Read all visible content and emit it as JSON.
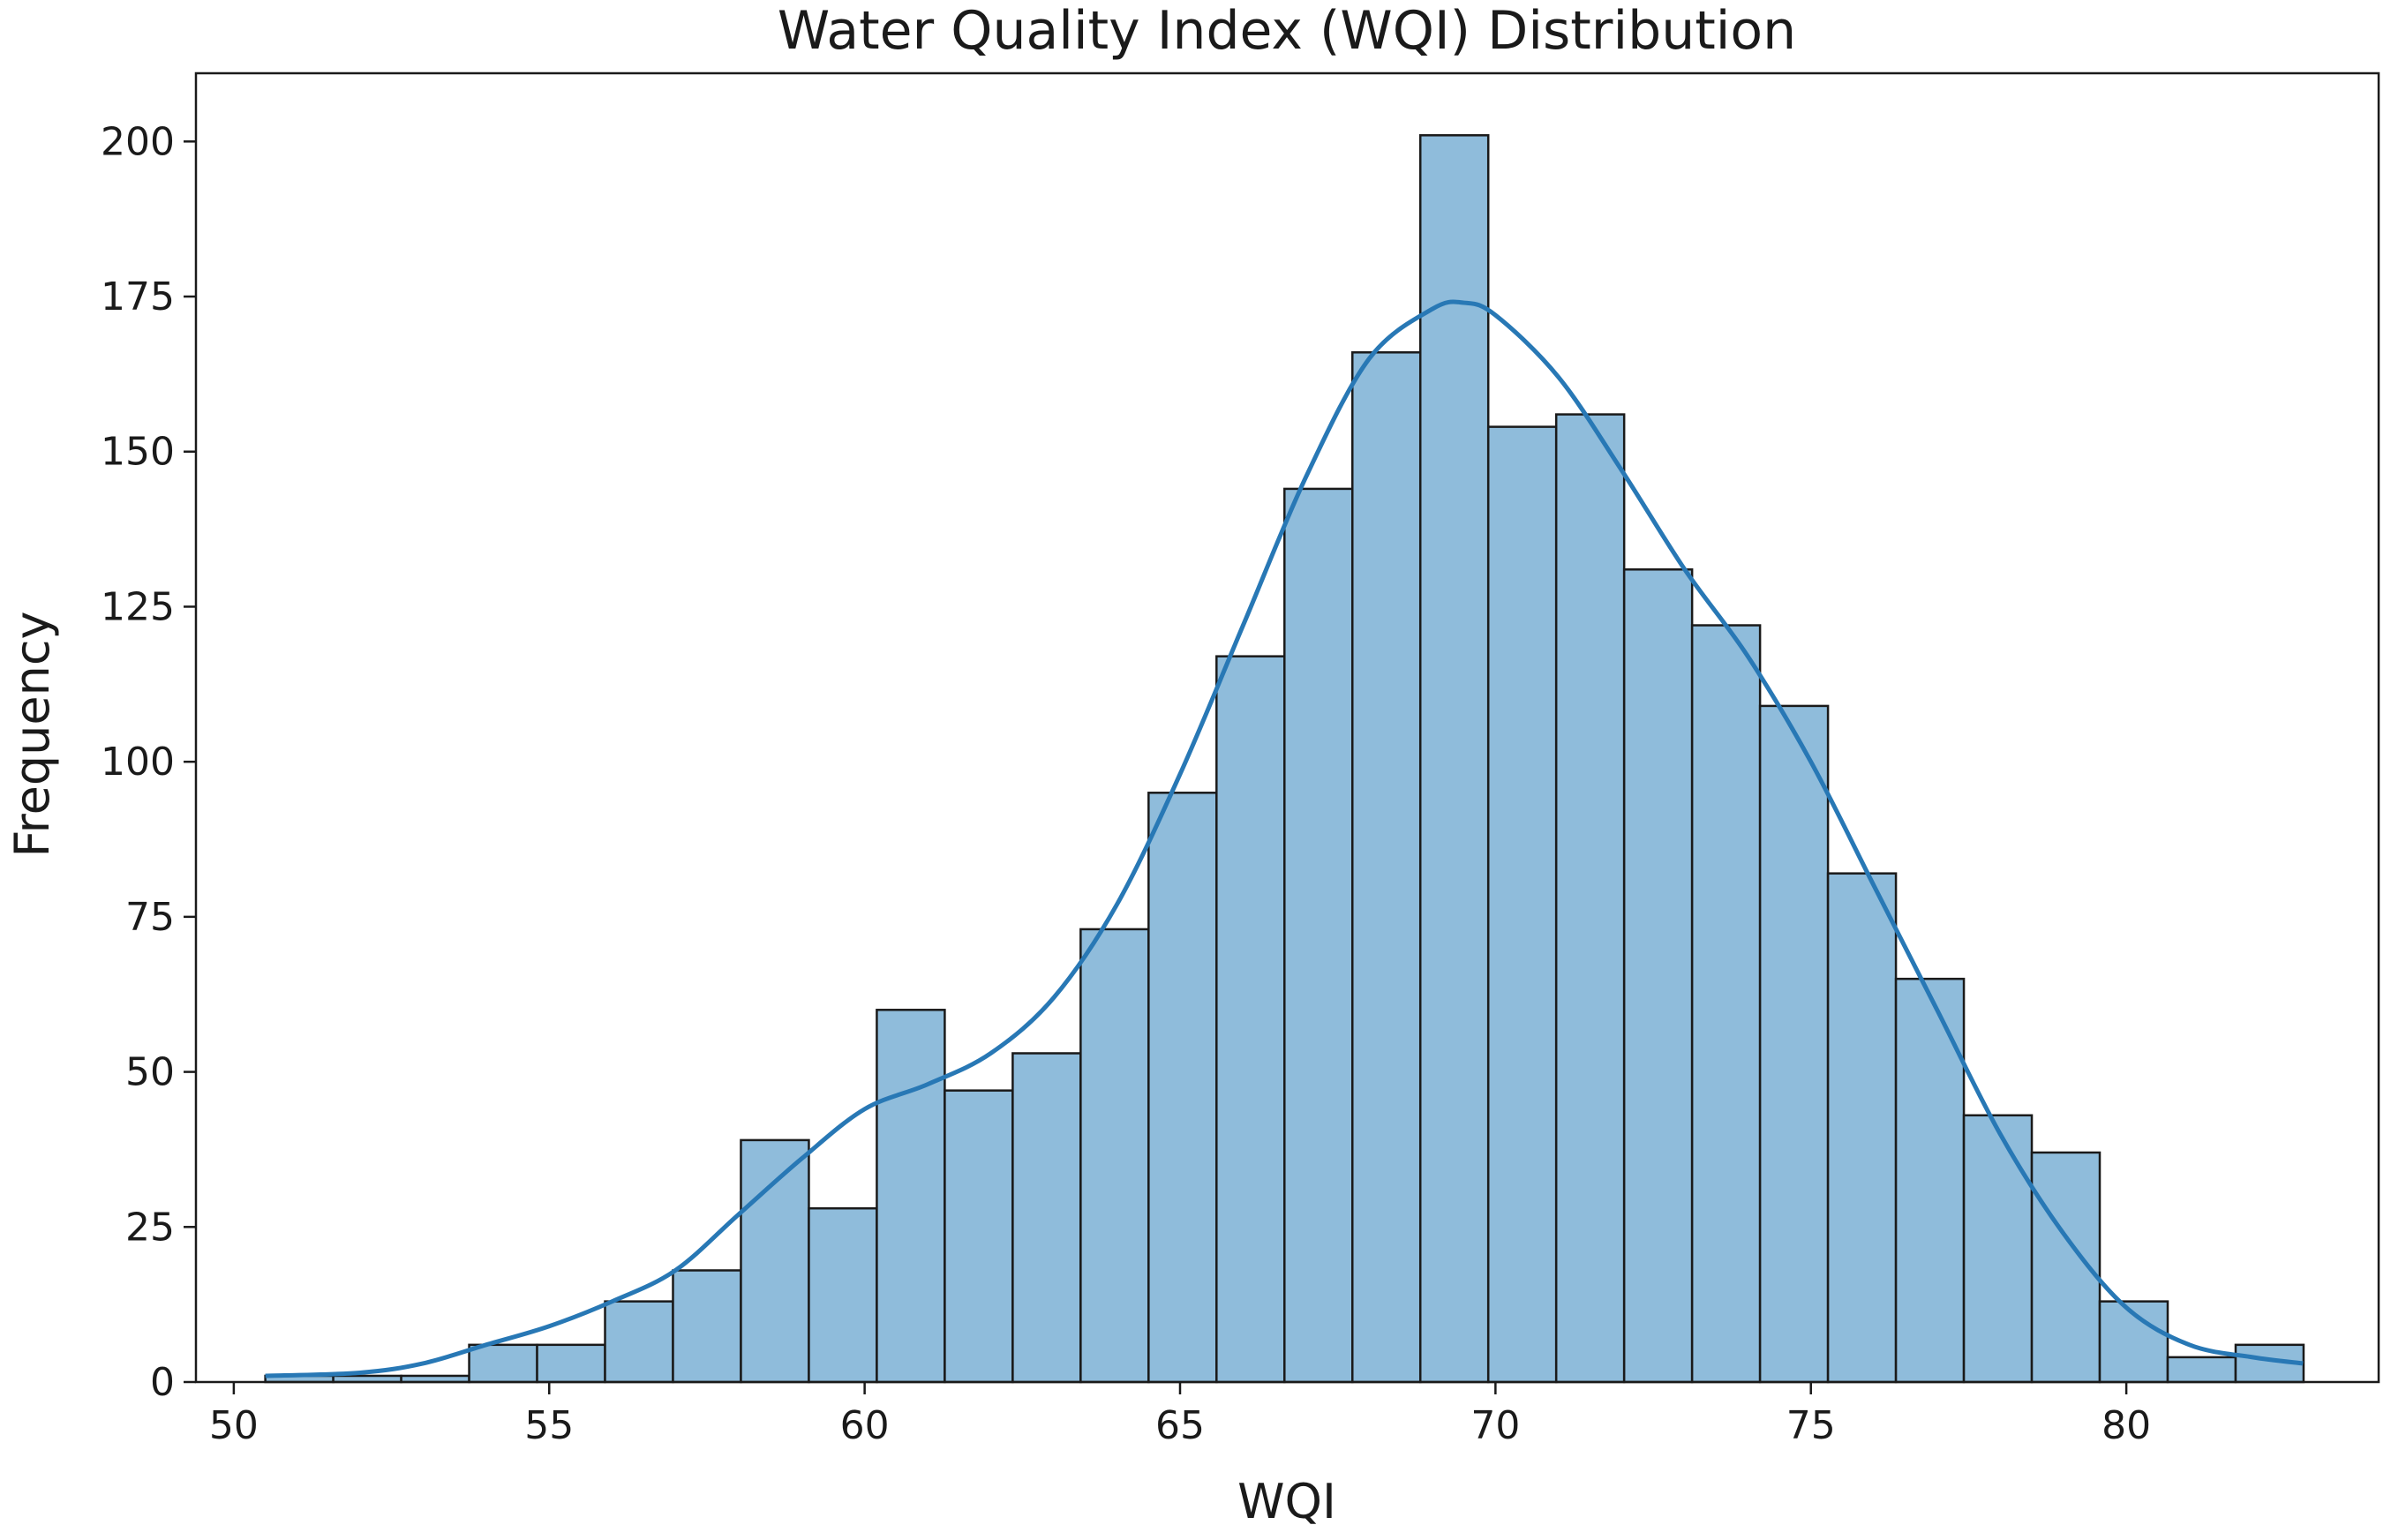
{
  "chart_data": {
    "type": "bar",
    "subtype": "histogram",
    "title": "Water Quality Index (WQI) Distribution",
    "xlabel": "WQI",
    "ylabel": "Frequency",
    "xlim": [
      49.4,
      84.0
    ],
    "ylim": [
      0,
      211
    ],
    "xticks": [
      50,
      55,
      60,
      65,
      70,
      75,
      80
    ],
    "yticks": [
      0,
      25,
      50,
      75,
      100,
      125,
      150,
      175,
      200
    ],
    "grid": false,
    "legend": "none",
    "bin_start": 50.5,
    "bin_width": 1.077,
    "counts": [
      1,
      1,
      1,
      6,
      6,
      13,
      18,
      39,
      28,
      60,
      47,
      53,
      73,
      95,
      117,
      144,
      166,
      201,
      154,
      156,
      131,
      122,
      109,
      82,
      65,
      43,
      37,
      13,
      4,
      6
    ],
    "kde": {
      "x": [
        50.5,
        52,
        53,
        54,
        55,
        56,
        57,
        58,
        59,
        60,
        61,
        62,
        63,
        64,
        65,
        66,
        67,
        68,
        69,
        69.5,
        70,
        71,
        72,
        73,
        74,
        75,
        76,
        77,
        78,
        79,
        80,
        81,
        82,
        82.8
      ],
      "y": [
        1,
        1.5,
        3,
        6,
        9,
        13,
        18,
        27,
        36,
        44,
        48,
        53,
        62,
        77,
        98,
        122,
        146,
        165,
        173,
        174,
        172,
        162,
        147,
        131,
        117,
        100,
        80,
        60,
        40,
        24,
        12,
        6,
        4,
        3
      ]
    },
    "colors": {
      "bar_fill": "#8fbcdb",
      "bar_edge": "#1a1a1a",
      "kde_line": "#2878b5"
    }
  }
}
